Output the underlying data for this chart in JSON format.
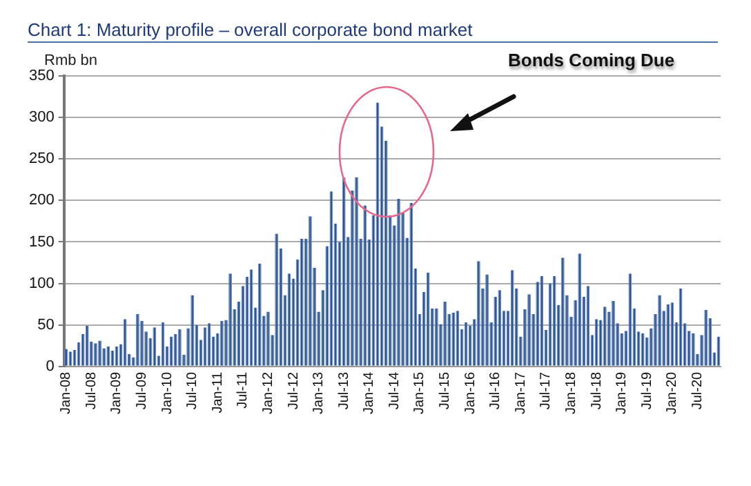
{
  "chart_data": {
    "type": "bar",
    "title": "Chart 1: Maturity profile – overall corporate bond market",
    "ylabel": "Rmb bn",
    "annotations": [
      "Bonds Coming Due"
    ],
    "categories": [
      "Jan-08",
      null,
      null,
      null,
      null,
      null,
      "Jul-08",
      null,
      null,
      null,
      null,
      null,
      "Jan-09",
      null,
      null,
      null,
      null,
      null,
      "Jul-09",
      null,
      null,
      null,
      null,
      null,
      "Jan-10",
      null,
      null,
      null,
      null,
      null,
      "Jul-10",
      null,
      null,
      null,
      null,
      null,
      "Jan-11",
      null,
      null,
      null,
      null,
      null,
      "Jul-11",
      null,
      null,
      null,
      null,
      null,
      "Jan-12",
      null,
      null,
      null,
      null,
      null,
      "Jul-12",
      null,
      null,
      null,
      null,
      null,
      "Jan-13",
      null,
      null,
      null,
      null,
      null,
      "Jul-13",
      null,
      null,
      null,
      null,
      null,
      "Jan-14",
      null,
      null,
      null,
      null,
      null,
      "Jul-14",
      null,
      null,
      null,
      null,
      null,
      "Jan-15",
      null,
      null,
      null,
      null,
      null,
      "Jul-15",
      null,
      null,
      null,
      null,
      null,
      "Jan-16",
      null,
      null,
      null,
      null,
      null,
      "Jul-16",
      null,
      null,
      null,
      null,
      null,
      "Jan-17",
      null,
      null,
      null,
      null,
      null,
      "Jul-17",
      null,
      null,
      null,
      null,
      null,
      "Jan-18",
      null,
      null,
      null,
      null,
      null,
      "Jul-18",
      null,
      null,
      null,
      null,
      null,
      "Jan-19",
      null,
      null,
      null,
      null,
      null,
      "Jul-19",
      null,
      null,
      null,
      null,
      null,
      "Jan-20",
      null,
      null,
      null,
      null,
      null,
      "Jul-20",
      null,
      null,
      null,
      null,
      null
    ],
    "values": [
      21,
      18,
      20,
      29,
      39,
      49,
      30,
      28,
      31,
      22,
      24,
      19,
      24,
      27,
      57,
      15,
      11,
      63,
      55,
      42,
      34,
      47,
      13,
      53,
      24,
      36,
      39,
      45,
      14,
      46,
      86,
      50,
      32,
      47,
      52,
      36,
      40,
      55,
      56,
      112,
      69,
      78,
      97,
      108,
      117,
      71,
      124,
      61,
      66,
      38,
      160,
      142,
      86,
      112,
      106,
      129,
      154,
      154,
      181,
      119,
      66,
      92,
      145,
      211,
      172,
      150,
      228,
      156,
      212,
      228,
      154,
      194,
      153,
      182,
      318,
      289,
      272,
      182,
      170,
      202,
      185,
      155,
      197,
      118,
      63,
      90,
      113,
      70,
      70,
      51,
      78,
      63,
      65,
      67,
      45,
      53,
      49,
      57,
      127,
      94,
      111,
      53,
      84,
      92,
      67,
      67,
      116,
      94,
      36,
      69,
      87,
      63,
      102,
      109,
      44,
      100,
      109,
      74,
      131,
      86,
      60,
      80,
      136,
      84,
      97,
      38,
      57,
      56,
      72,
      66,
      79,
      52,
      40,
      43,
      112,
      70,
      42,
      40,
      35,
      46,
      63,
      86,
      67,
      75,
      77,
      53,
      94,
      52,
      43,
      40,
      15,
      38,
      68,
      58,
      17,
      36
    ],
    "color": "#2f5597",
    "ylim": [
      0,
      350
    ],
    "yticks": [
      0,
      50,
      100,
      150,
      200,
      250,
      300,
      350
    ],
    "grid": "y"
  }
}
